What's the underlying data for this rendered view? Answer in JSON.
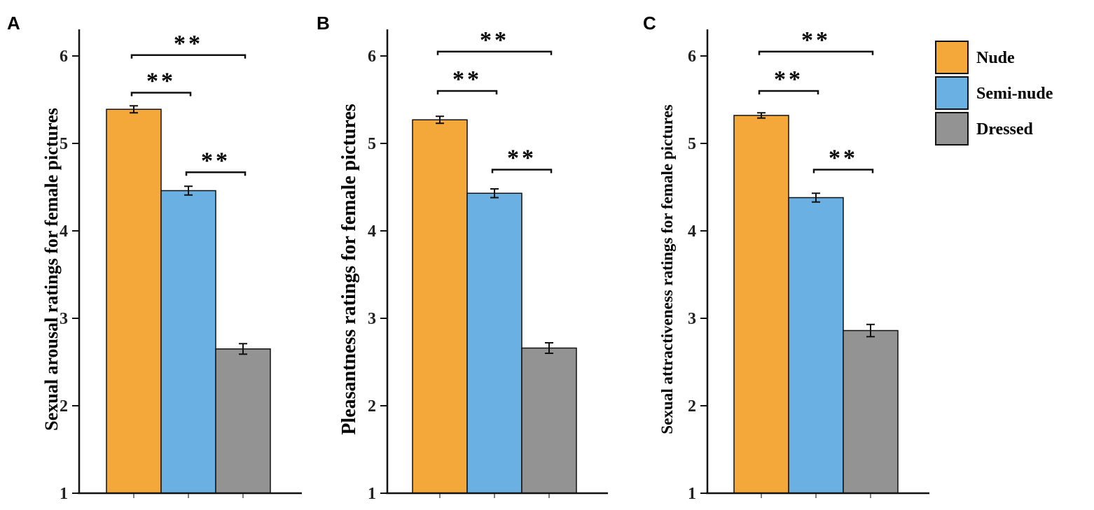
{
  "colors": {
    "nude": "#F4A83A",
    "semi_nude": "#6BB0E2",
    "dressed": "#939393"
  },
  "legend": {
    "items": [
      "Nude",
      "Semi-nude",
      "Dressed"
    ]
  },
  "chart_data": [
    {
      "type": "bar",
      "panel": "A",
      "ylabel": "Sexual arousal ratings for female pictures",
      "categories": [
        "Nude",
        "Semi-nude",
        "Dressed"
      ],
      "values": [
        5.39,
        4.46,
        2.65
      ],
      "errors": [
        0.04,
        0.05,
        0.06
      ],
      "ylim": [
        1,
        6.3
      ],
      "yticks": [
        1,
        2,
        3,
        4,
        5,
        6
      ],
      "significance": [
        {
          "from": 0,
          "to": 1,
          "label": "**",
          "y": 5.58
        },
        {
          "from": 1,
          "to": 2,
          "label": "**",
          "y": 4.67
        },
        {
          "from": 0,
          "to": 2,
          "label": "**",
          "y": 6.01
        }
      ]
    },
    {
      "type": "bar",
      "panel": "B",
      "ylabel": "Pleasantness ratings for female pictures",
      "categories": [
        "Nude",
        "Semi-nude",
        "Dressed"
      ],
      "values": [
        5.27,
        4.43,
        2.66
      ],
      "errors": [
        0.04,
        0.05,
        0.06
      ],
      "ylim": [
        1,
        6.3
      ],
      "yticks": [
        1,
        2,
        3,
        4,
        5,
        6
      ],
      "significance": [
        {
          "from": 0,
          "to": 1,
          "label": "**",
          "y": 5.6
        },
        {
          "from": 1,
          "to": 2,
          "label": "**",
          "y": 4.7
        },
        {
          "from": 0,
          "to": 2,
          "label": "**",
          "y": 6.05
        }
      ]
    },
    {
      "type": "bar",
      "panel": "C",
      "ylabel": "Sexual attractiveness ratings for female pictures",
      "categories": [
        "Nude",
        "Semi-nude",
        "Dressed"
      ],
      "values": [
        5.32,
        4.38,
        2.86
      ],
      "errors": [
        0.03,
        0.05,
        0.07
      ],
      "ylim": [
        1,
        6.3
      ],
      "yticks": [
        1,
        2,
        3,
        4,
        5,
        6
      ],
      "significance": [
        {
          "from": 0,
          "to": 1,
          "label": "**",
          "y": 5.6
        },
        {
          "from": 1,
          "to": 2,
          "label": "**",
          "y": 4.7
        },
        {
          "from": 0,
          "to": 2,
          "label": "**",
          "y": 6.05
        }
      ]
    }
  ]
}
